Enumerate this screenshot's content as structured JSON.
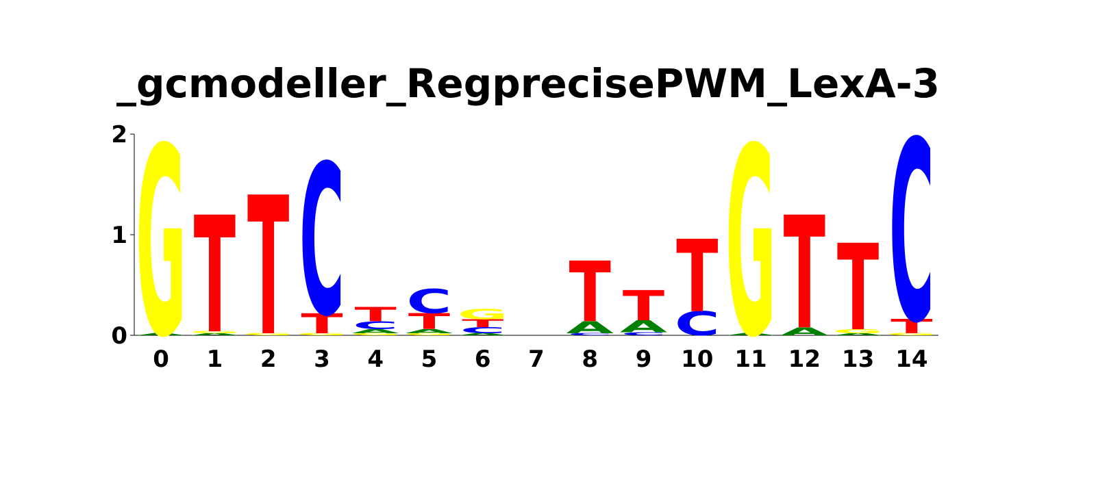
{
  "chart_data": {
    "type": "sequence-logo",
    "title": "_gcmodeller_RegprecisePWM_LexA-3",
    "xlabel": "",
    "ylabel": "",
    "ylim": [
      0,
      2
    ],
    "y_ticks": [
      "0",
      "1",
      "2"
    ],
    "grid": false,
    "legend": "none",
    "colors": {
      "A": "#008000",
      "C": "#0000ff",
      "G": "#ffff00",
      "T": "#ff0000"
    },
    "positions": [
      {
        "label": "0",
        "stack": [
          {
            "letter": "A",
            "height": 0.02
          },
          {
            "letter": "G",
            "height": 1.88
          }
        ]
      },
      {
        "label": "1",
        "stack": [
          {
            "letter": "A",
            "height": 0.02
          },
          {
            "letter": "G",
            "height": 0.02
          },
          {
            "letter": "T",
            "height": 1.16
          }
        ]
      },
      {
        "label": "2",
        "stack": [
          {
            "letter": "G",
            "height": 0.02
          },
          {
            "letter": "T",
            "height": 1.38
          }
        ]
      },
      {
        "label": "3",
        "stack": [
          {
            "letter": "G",
            "height": 0.02
          },
          {
            "letter": "T",
            "height": 0.2
          },
          {
            "letter": "C",
            "height": 1.5
          }
        ]
      },
      {
        "label": "4",
        "stack": [
          {
            "letter": "G",
            "height": 0.02
          },
          {
            "letter": "A",
            "height": 0.04
          },
          {
            "letter": "C",
            "height": 0.08
          },
          {
            "letter": "T",
            "height": 0.14
          }
        ]
      },
      {
        "label": "5",
        "stack": [
          {
            "letter": "G",
            "height": 0.02
          },
          {
            "letter": "A",
            "height": 0.04
          },
          {
            "letter": "T",
            "height": 0.16
          },
          {
            "letter": "C",
            "height": 0.24
          }
        ]
      },
      {
        "label": "6",
        "stack": [
          {
            "letter": "A",
            "height": 0.02
          },
          {
            "letter": "C",
            "height": 0.06
          },
          {
            "letter": "T",
            "height": 0.08
          },
          {
            "letter": "G",
            "height": 0.1
          }
        ]
      },
      {
        "label": "7",
        "stack": []
      },
      {
        "label": "8",
        "stack": [
          {
            "letter": "C",
            "height": 0.02
          },
          {
            "letter": "A",
            "height": 0.12
          },
          {
            "letter": "T",
            "height": 0.6
          }
        ]
      },
      {
        "label": "9",
        "stack": [
          {
            "letter": "C",
            "height": 0.03
          },
          {
            "letter": "A",
            "height": 0.12
          },
          {
            "letter": "T",
            "height": 0.3
          }
        ]
      },
      {
        "label": "10",
        "stack": [
          {
            "letter": "C",
            "height": 0.24
          },
          {
            "letter": "T",
            "height": 0.72
          }
        ]
      },
      {
        "label": "11",
        "stack": [
          {
            "letter": "A",
            "height": 0.02
          },
          {
            "letter": "G",
            "height": 1.88
          }
        ]
      },
      {
        "label": "12",
        "stack": [
          {
            "letter": "A",
            "height": 0.08
          },
          {
            "letter": "T",
            "height": 1.12
          }
        ]
      },
      {
        "label": "13",
        "stack": [
          {
            "letter": "A",
            "height": 0.02
          },
          {
            "letter": "G",
            "height": 0.04
          },
          {
            "letter": "T",
            "height": 0.86
          }
        ]
      },
      {
        "label": "14",
        "stack": [
          {
            "letter": "G",
            "height": 0.02
          },
          {
            "letter": "T",
            "height": 0.14
          },
          {
            "letter": "C",
            "height": 1.8
          }
        ]
      }
    ]
  }
}
